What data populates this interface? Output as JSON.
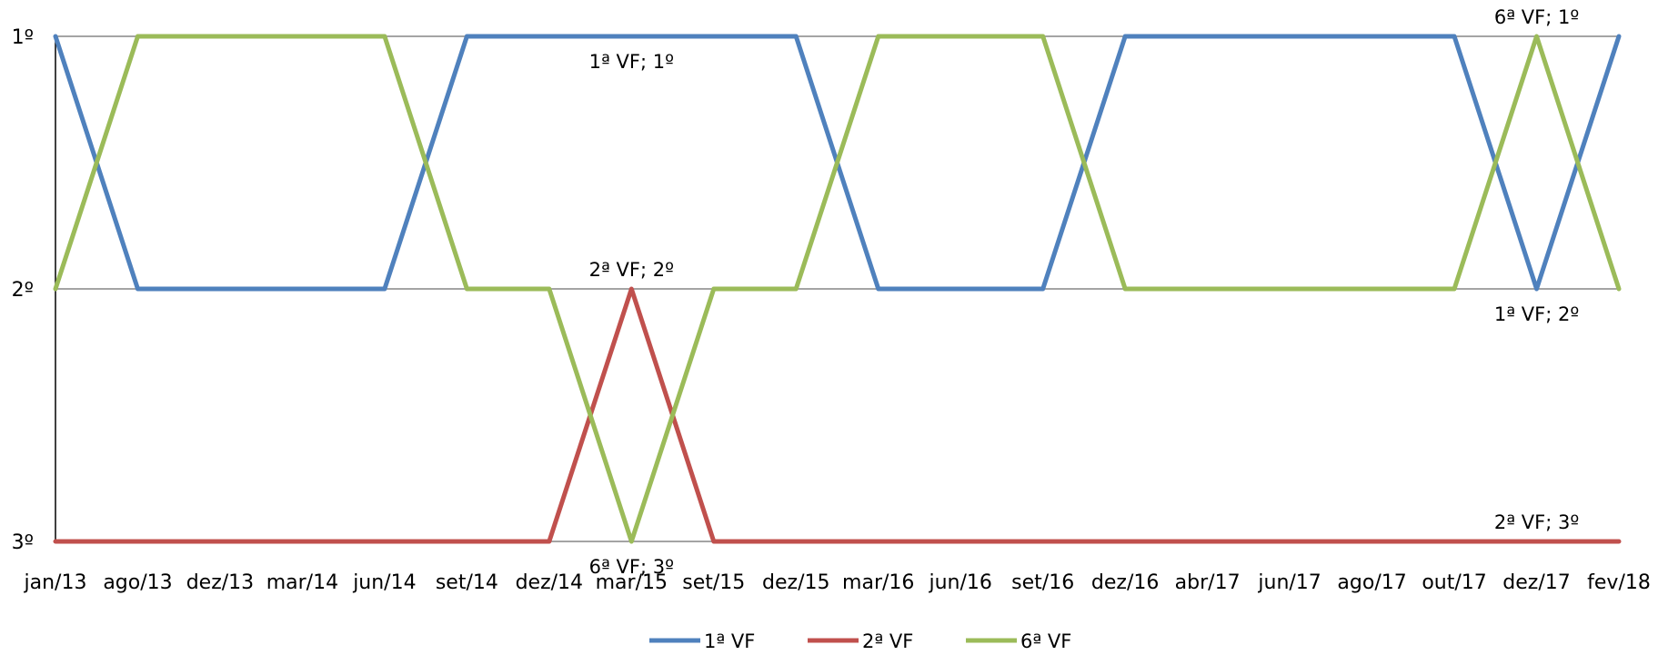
{
  "chart_data": {
    "type": "line",
    "title": "",
    "xlabel": "",
    "ylabel": "",
    "categories": [
      "jan/13",
      "ago/13",
      "dez/13",
      "mar/14",
      "jun/14",
      "set/14",
      "dez/14",
      "mar/15",
      "set/15",
      "dez/15",
      "mar/16",
      "jun/16",
      "set/16",
      "dez/16",
      "abr/17",
      "jun/17",
      "ago/17",
      "out/17",
      "dez/17",
      "fev/18"
    ],
    "y_tick_labels": [
      "1º",
      "2º",
      "3º"
    ],
    "y_axis_reversed": true,
    "ylim": [
      1,
      3
    ],
    "grid": true,
    "legend_position": "bottom",
    "series": [
      {
        "name": "1ª  VF",
        "color": "#4f81bd",
        "values": [
          1,
          2,
          2,
          2,
          2,
          1,
          1,
          1,
          1,
          1,
          2,
          2,
          2,
          1,
          1,
          1,
          1,
          1,
          2,
          1
        ]
      },
      {
        "name": "2ª VF",
        "color": "#c0504d",
        "values": [
          3,
          3,
          3,
          3,
          3,
          3,
          3,
          2,
          3,
          3,
          3,
          3,
          3,
          3,
          3,
          3,
          3,
          3,
          3,
          3
        ]
      },
      {
        "name": "6ª VF",
        "color": "#9bbb59",
        "values": [
          2,
          1,
          1,
          1,
          1,
          2,
          2,
          3,
          2,
          2,
          1,
          1,
          1,
          2,
          2,
          2,
          2,
          2,
          1,
          2
        ]
      }
    ],
    "data_labels": [
      {
        "text": "1ª  VF; 1º",
        "series": 0,
        "index": 7,
        "placement": "below"
      },
      {
        "text": "2ª VF; 2º",
        "series": 1,
        "index": 7,
        "placement": "above"
      },
      {
        "text": "6ª VF; 3º",
        "series": 2,
        "index": 7,
        "placement": "below"
      },
      {
        "text": "6ª VF; 1º",
        "series": 2,
        "index": 18,
        "placement": "above"
      },
      {
        "text": "1ª  VF; 2º",
        "series": 0,
        "index": 18,
        "placement": "below"
      },
      {
        "text": "2ª VF; 3º",
        "series": 1,
        "index": 18,
        "placement": "above"
      }
    ]
  }
}
